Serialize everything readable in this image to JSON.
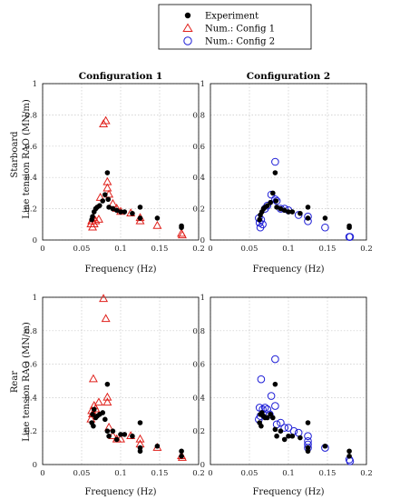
{
  "legend": {
    "items": [
      {
        "label": "Experiment",
        "marker": "dot",
        "color": "#000000"
      },
      {
        "label": "Num.: Config 1",
        "marker": "triangle",
        "color": "#e0211c"
      },
      {
        "label": "Num.: Config 2",
        "marker": "circle",
        "color": "#1c1cd6"
      }
    ]
  },
  "row_labels": [
    "Starboard",
    "Rear"
  ],
  "chart_data": [
    {
      "type": "scatter",
      "title": "Configuration 1",
      "row": "Starboard",
      "xlabel": "Frequency (Hz)",
      "ylabel": "Line tension RAO (MN/m)",
      "xlim": [
        0,
        0.2
      ],
      "ylim": [
        0,
        1
      ],
      "xticks": [
        "0",
        "0.05",
        "0.1",
        "0.15",
        "0.2"
      ],
      "yticks": [
        "0",
        "0.2",
        "0.4",
        "0.6",
        "0.8",
        "1"
      ],
      "grid": true,
      "series": [
        {
          "name": "Experiment",
          "marker": "dot",
          "x": [
            0.063,
            0.064,
            0.066,
            0.068,
            0.07,
            0.073,
            0.077,
            0.08,
            0.083,
            0.084,
            0.085,
            0.09,
            0.095,
            0.1,
            0.105,
            0.115,
            0.125,
            0.125,
            0.147,
            0.178,
            0.178
          ],
          "y": [
            0.13,
            0.15,
            0.18,
            0.2,
            0.21,
            0.22,
            0.25,
            0.29,
            0.43,
            0.26,
            0.21,
            0.2,
            0.19,
            0.18,
            0.18,
            0.17,
            0.21,
            0.14,
            0.14,
            0.09,
            0.08
          ]
        },
        {
          "name": "Num.: Config 1",
          "marker": "triangle",
          "x": [
            0.062,
            0.063,
            0.064,
            0.065,
            0.066,
            0.068,
            0.072,
            0.074,
            0.078,
            0.081,
            0.083,
            0.083,
            0.085,
            0.09,
            0.095,
            0.1,
            0.113,
            0.125,
            0.125,
            0.147,
            0.178,
            0.179
          ],
          "y": [
            0.1,
            0.12,
            0.08,
            0.14,
            0.1,
            0.12,
            0.13,
            0.27,
            0.74,
            0.76,
            0.37,
            0.33,
            0.29,
            0.23,
            0.2,
            0.18,
            0.17,
            0.14,
            0.12,
            0.09,
            0.04,
            0.03
          ]
        }
      ]
    },
    {
      "type": "scatter",
      "title": "Configuration 2",
      "row": "Starboard",
      "xlabel": "Frequency (Hz)",
      "ylabel": "",
      "xlim": [
        0,
        0.2
      ],
      "ylim": [
        0,
        1
      ],
      "xticks": [
        "0",
        "0.05",
        "0.1",
        "0.15",
        "0.2"
      ],
      "yticks": [
        "0",
        "0.2",
        "0.4",
        "0.6",
        "0.8",
        "1"
      ],
      "grid": true,
      "series": [
        {
          "name": "Experiment",
          "marker": "dot",
          "x": [
            0.063,
            0.064,
            0.066,
            0.068,
            0.07,
            0.073,
            0.077,
            0.08,
            0.083,
            0.084,
            0.085,
            0.09,
            0.095,
            0.1,
            0.105,
            0.115,
            0.125,
            0.125,
            0.147,
            0.178,
            0.178
          ],
          "y": [
            0.13,
            0.16,
            0.18,
            0.2,
            0.21,
            0.22,
            0.24,
            0.3,
            0.43,
            0.25,
            0.21,
            0.2,
            0.19,
            0.18,
            0.18,
            0.17,
            0.21,
            0.14,
            0.14,
            0.09,
            0.08
          ]
        },
        {
          "name": "Num.: Config 2",
          "marker": "circle",
          "x": [
            0.062,
            0.063,
            0.064,
            0.065,
            0.067,
            0.07,
            0.073,
            0.078,
            0.083,
            0.083,
            0.085,
            0.09,
            0.095,
            0.1,
            0.113,
            0.125,
            0.125,
            0.147,
            0.178,
            0.179
          ],
          "y": [
            0.14,
            0.11,
            0.08,
            0.13,
            0.1,
            0.2,
            0.22,
            0.29,
            0.5,
            0.26,
            0.25,
            0.2,
            0.2,
            0.19,
            0.16,
            0.15,
            0.12,
            0.08,
            0.02,
            0.02
          ]
        }
      ]
    },
    {
      "type": "scatter",
      "title": "",
      "row": "Rear",
      "xlabel": "Frequency (Hz)",
      "ylabel": "Line tension RAO (MN/m)",
      "xlim": [
        0,
        0.2
      ],
      "ylim": [
        0,
        1
      ],
      "xticks": [
        "0",
        "0.05",
        "0.1",
        "0.15",
        "0.2"
      ],
      "yticks": [
        "0",
        "0.2",
        "0.4",
        "0.6",
        "0.8",
        "1"
      ],
      "grid": true,
      "series": [
        {
          "name": "Experiment",
          "marker": "dot",
          "x": [
            0.063,
            0.064,
            0.065,
            0.066,
            0.068,
            0.07,
            0.073,
            0.077,
            0.08,
            0.083,
            0.083,
            0.085,
            0.09,
            0.095,
            0.1,
            0.105,
            0.115,
            0.125,
            0.125,
            0.125,
            0.147,
            0.178,
            0.178
          ],
          "y": [
            0.25,
            0.3,
            0.23,
            0.33,
            0.28,
            0.29,
            0.3,
            0.31,
            0.27,
            0.48,
            0.2,
            0.17,
            0.2,
            0.15,
            0.18,
            0.18,
            0.17,
            0.25,
            0.1,
            0.08,
            0.11,
            0.08,
            0.05
          ]
        },
        {
          "name": "Num.: Config 1",
          "marker": "triangle",
          "x": [
            0.062,
            0.063,
            0.064,
            0.065,
            0.066,
            0.068,
            0.072,
            0.078,
            0.081,
            0.083,
            0.083,
            0.085,
            0.09,
            0.095,
            0.1,
            0.113,
            0.125,
            0.125,
            0.147,
            0.178,
            0.179
          ],
          "y": [
            0.27,
            0.32,
            0.3,
            0.51,
            0.35,
            0.33,
            0.37,
            0.99,
            0.87,
            0.4,
            0.37,
            0.22,
            0.17,
            0.15,
            0.15,
            0.17,
            0.15,
            0.12,
            0.1,
            0.05,
            0.04
          ]
        }
      ]
    },
    {
      "type": "scatter",
      "title": "",
      "row": "Rear",
      "xlabel": "Frequency (Hz)",
      "ylabel": "",
      "xlim": [
        0,
        0.2
      ],
      "ylim": [
        0,
        1
      ],
      "xticks": [
        "0",
        "0.05",
        "0.1",
        "0.15",
        "0.2"
      ],
      "yticks": [
        "0",
        "0.2",
        "0.4",
        "0.6",
        "0.8",
        "1"
      ],
      "grid": true,
      "series": [
        {
          "name": "Experiment",
          "marker": "dot",
          "x": [
            0.063,
            0.064,
            0.065,
            0.066,
            0.068,
            0.07,
            0.073,
            0.077,
            0.08,
            0.083,
            0.083,
            0.085,
            0.09,
            0.095,
            0.1,
            0.105,
            0.115,
            0.125,
            0.125,
            0.125,
            0.147,
            0.178,
            0.178
          ],
          "y": [
            0.25,
            0.3,
            0.23,
            0.31,
            0.29,
            0.28,
            0.28,
            0.3,
            0.28,
            0.48,
            0.21,
            0.17,
            0.2,
            0.15,
            0.17,
            0.17,
            0.16,
            0.25,
            0.1,
            0.08,
            0.11,
            0.08,
            0.05
          ]
        },
        {
          "name": "Num.: Config 2",
          "marker": "circle",
          "x": [
            0.062,
            0.063,
            0.064,
            0.065,
            0.067,
            0.07,
            0.073,
            0.076,
            0.078,
            0.083,
            0.083,
            0.085,
            0.09,
            0.095,
            0.1,
            0.107,
            0.113,
            0.125,
            0.125,
            0.125,
            0.125,
            0.147,
            0.178,
            0.179
          ],
          "y": [
            0.27,
            0.34,
            0.29,
            0.51,
            0.33,
            0.34,
            0.33,
            0.3,
            0.41,
            0.63,
            0.35,
            0.24,
            0.25,
            0.22,
            0.22,
            0.2,
            0.19,
            0.17,
            0.14,
            0.12,
            0.1,
            0.1,
            0.03,
            0.02
          ]
        }
      ]
    }
  ]
}
